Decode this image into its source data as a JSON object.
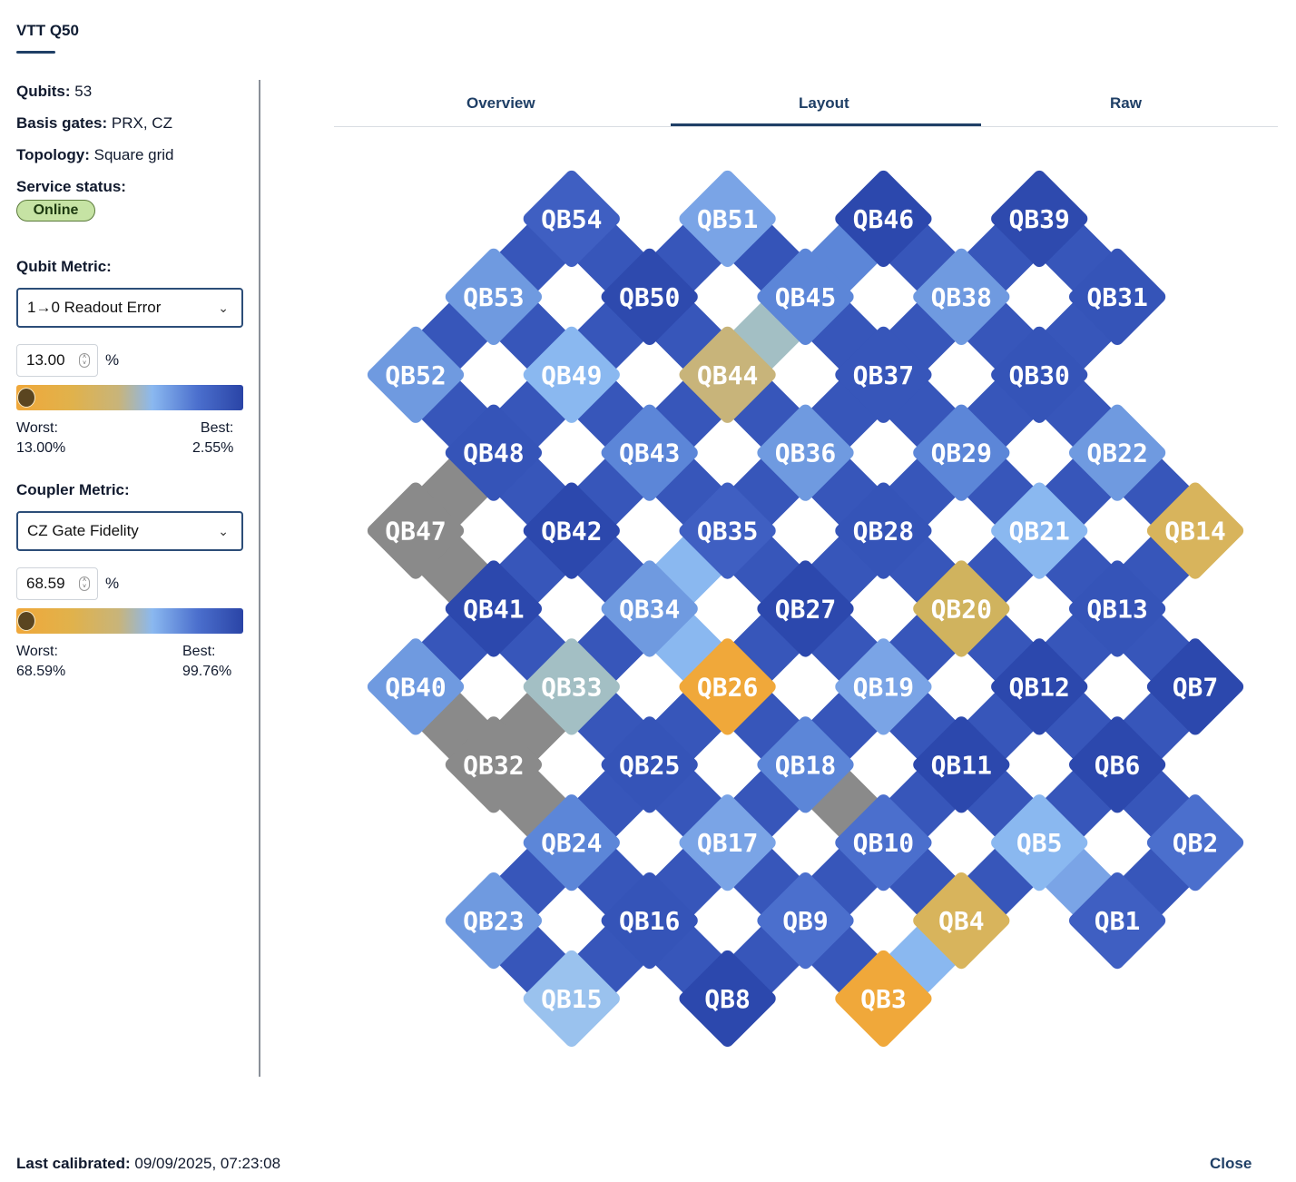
{
  "device": {
    "name": "VTT Q50"
  },
  "info": {
    "qubits_label": "Qubits:",
    "qubits_value": "53",
    "basis_label": "Basis gates:",
    "basis_value": "PRX, CZ",
    "topology_label": "Topology:",
    "topology_value": "Square grid",
    "status_label": "Service status:",
    "status_value": "Online"
  },
  "qubit_metric": {
    "title": "Qubit Metric:",
    "selected": "1→0 Readout Error",
    "threshold": "13.00",
    "unit": "%",
    "worst_label": "Worst:",
    "worst_value": "13.00%",
    "best_label": "Best:",
    "best_value": "2.55%"
  },
  "coupler_metric": {
    "title": "Coupler Metric:",
    "selected": "CZ Gate Fidelity",
    "threshold": "68.59",
    "unit": "%",
    "worst_label": "Worst:",
    "worst_value": "68.59%",
    "best_label": "Best:",
    "best_value": "99.76%"
  },
  "tabs": [
    {
      "label": "Overview",
      "active": false
    },
    {
      "label": "Layout",
      "active": true
    },
    {
      "label": "Raw",
      "active": false
    }
  ],
  "colors": {
    "worst": "#f0a83a",
    "mid_gold": "#d8b45c",
    "tan": "#c8b47a",
    "sage": "#a3bfc4",
    "sky": "#8ab8f0",
    "light_blue": "#6f9ae0",
    "blue": "#4b6fcd",
    "dark_blue": "#2c48ad",
    "disabled": "#8a8a8a"
  },
  "layout_grid": {
    "qubits": [
      {
        "name": "QB54",
        "row": 0,
        "col": 2,
        "color": "#3f5fc2"
      },
      {
        "name": "QB51",
        "row": 0,
        "col": 4,
        "color": "#7aa4e6"
      },
      {
        "name": "QB46",
        "row": 0,
        "col": 6,
        "color": "#2c48ad"
      },
      {
        "name": "QB39",
        "row": 0,
        "col": 8,
        "color": "#2e4aae"
      },
      {
        "name": "QB53",
        "row": 1,
        "col": 1,
        "color": "#6f9ae0"
      },
      {
        "name": "QB50",
        "row": 1,
        "col": 3,
        "color": "#2e4aae"
      },
      {
        "name": "QB45",
        "row": 1,
        "col": 5,
        "color": "#5c86d8"
      },
      {
        "name": "QB38",
        "row": 1,
        "col": 7,
        "color": "#6f9ae0"
      },
      {
        "name": "QB31",
        "row": 1,
        "col": 9,
        "color": "#3554b8"
      },
      {
        "name": "QB52",
        "row": 2,
        "col": 0,
        "color": "#6f9ae0"
      },
      {
        "name": "QB49",
        "row": 2,
        "col": 2,
        "color": "#8ab8f0"
      },
      {
        "name": "QB44",
        "row": 2,
        "col": 4,
        "color": "#c8b47a"
      },
      {
        "name": "QB37",
        "row": 2,
        "col": 6,
        "color": "#3756ba"
      },
      {
        "name": "QB30",
        "row": 2,
        "col": 8,
        "color": "#3554b8"
      },
      {
        "name": "QB48",
        "row": 3,
        "col": 1,
        "color": "#3554b8"
      },
      {
        "name": "QB43",
        "row": 3,
        "col": 3,
        "color": "#5c86d8"
      },
      {
        "name": "QB36",
        "row": 3,
        "col": 5,
        "color": "#6f9ae0"
      },
      {
        "name": "QB29",
        "row": 3,
        "col": 7,
        "color": "#5c86d8"
      },
      {
        "name": "QB22",
        "row": 3,
        "col": 9,
        "color": "#6f9ae0"
      },
      {
        "name": "QB47",
        "row": 4,
        "col": 0,
        "color": "#8a8a8a"
      },
      {
        "name": "QB42",
        "row": 4,
        "col": 2,
        "color": "#2c48ad"
      },
      {
        "name": "QB35",
        "row": 4,
        "col": 4,
        "color": "#3f5fc2"
      },
      {
        "name": "QB28",
        "row": 4,
        "col": 6,
        "color": "#3554b8"
      },
      {
        "name": "QB21",
        "row": 4,
        "col": 8,
        "color": "#8ab8f0"
      },
      {
        "name": "QB14",
        "row": 4,
        "col": 10,
        "color": "#d8b45c"
      },
      {
        "name": "QB41",
        "row": 5,
        "col": 1,
        "color": "#2c48ad"
      },
      {
        "name": "QB34",
        "row": 5,
        "col": 3,
        "color": "#6f9ae0"
      },
      {
        "name": "QB27",
        "row": 5,
        "col": 5,
        "color": "#2c48ad"
      },
      {
        "name": "QB20",
        "row": 5,
        "col": 7,
        "color": "#d0b35e"
      },
      {
        "name": "QB13",
        "row": 5,
        "col": 9,
        "color": "#3554b8"
      },
      {
        "name": "QB40",
        "row": 6,
        "col": 0,
        "color": "#6f9ae0"
      },
      {
        "name": "QB33",
        "row": 6,
        "col": 2,
        "color": "#a3bfc4"
      },
      {
        "name": "QB26",
        "row": 6,
        "col": 4,
        "color": "#f0a83a"
      },
      {
        "name": "QB19",
        "row": 6,
        "col": 6,
        "color": "#7aa4e6"
      },
      {
        "name": "QB12",
        "row": 6,
        "col": 8,
        "color": "#2c48ad"
      },
      {
        "name": "QB7",
        "row": 6,
        "col": 10,
        "color": "#2c48ad"
      },
      {
        "name": "QB32",
        "row": 7,
        "col": 1,
        "color": "#8a8a8a"
      },
      {
        "name": "QB25",
        "row": 7,
        "col": 3,
        "color": "#3554b8"
      },
      {
        "name": "QB18",
        "row": 7,
        "col": 5,
        "color": "#5c86d8"
      },
      {
        "name": "QB11",
        "row": 7,
        "col": 7,
        "color": "#2c48ad"
      },
      {
        "name": "QB6",
        "row": 7,
        "col": 9,
        "color": "#2c48ad"
      },
      {
        "name": "QB24",
        "row": 8,
        "col": 2,
        "color": "#5c86d8"
      },
      {
        "name": "QB17",
        "row": 8,
        "col": 4,
        "color": "#7aa4e6"
      },
      {
        "name": "QB10",
        "row": 8,
        "col": 6,
        "color": "#4b6fcd"
      },
      {
        "name": "QB5",
        "row": 8,
        "col": 8,
        "color": "#8ab8f0"
      },
      {
        "name": "QB2",
        "row": 8,
        "col": 10,
        "color": "#4b6fcd"
      },
      {
        "name": "QB23",
        "row": 9,
        "col": 1,
        "color": "#6f9ae0"
      },
      {
        "name": "QB16",
        "row": 9,
        "col": 3,
        "color": "#3554b8"
      },
      {
        "name": "QB9",
        "row": 9,
        "col": 5,
        "color": "#4b6fcd"
      },
      {
        "name": "QB4",
        "row": 9,
        "col": 7,
        "color": "#d8b45c"
      },
      {
        "name": "QB1",
        "row": 9,
        "col": 9,
        "color": "#3f5fc2"
      },
      {
        "name": "QB15",
        "row": 10,
        "col": 2,
        "color": "#9ac2ee"
      },
      {
        "name": "QB8",
        "row": 10,
        "col": 4,
        "color": "#2c48ad"
      },
      {
        "name": "QB3",
        "row": 10,
        "col": 6,
        "color": "#f0a83a"
      }
    ],
    "coupler_overrides": {
      "QB47-QB48": "#8a8a8a",
      "QB47-QB41": "#8a8a8a",
      "QB32-QB40": "#8a8a8a",
      "QB32-QB33": "#8a8a8a",
      "QB32-QB24": "#8a8a8a",
      "QB18-QB10": "#8a8a8a",
      "QB45-QB44": "#a3bfc4",
      "QB35-QB34": "#8ab8f0",
      "QB34-QB26": "#8ab8f0",
      "QB4-QB3": "#8ab8f0",
      "QB54-QB51": "#7aa4e6",
      "QB51-QB45": "#3554b8",
      "QB5-QB1": "#7aa4e6",
      "QB45-QB38": "#2c48ad",
      "QB46-QB45": "#5c86d8"
    },
    "coupler_default_color": "#3756ba"
  },
  "footer": {
    "calibrated_label": "Last calibrated:",
    "calibrated_value": "09/09/2025, 07:23:08",
    "close_label": "Close"
  }
}
